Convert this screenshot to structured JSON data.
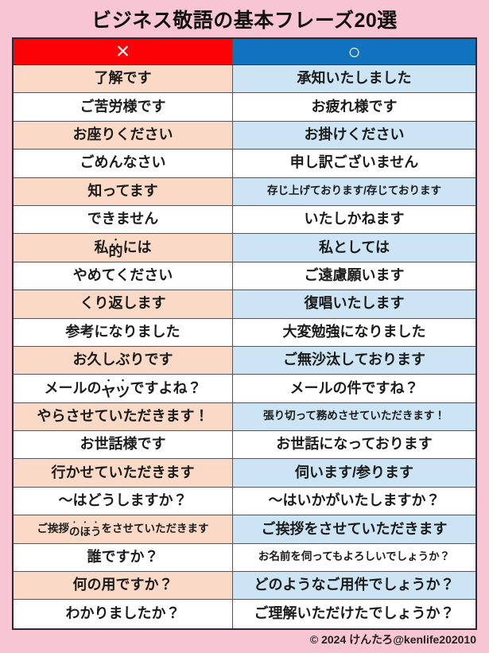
{
  "page": {
    "title": "ビジネス敬語の基本フレーズ20選",
    "credit": "© 2024 けんたろ@kenlife202010"
  },
  "colors": {
    "page_background": "#F8C5D5",
    "ng_header": "#FB0206",
    "ok_header": "#1173BF",
    "ng_row_shaded": "#FAD9C7",
    "ok_row_shaded": "#CDE4F4",
    "row_plain": "#FFFFFF",
    "text": "#1B1B1B"
  },
  "table": {
    "headers": [
      {
        "id": "ng",
        "label": "×",
        "meaning": "incorrect-phrase-column"
      },
      {
        "id": "ok",
        "label": "○",
        "meaning": "correct-phrase-column"
      }
    ],
    "rows": [
      {
        "ng": {
          "text": "了解です"
        },
        "ok": {
          "text": "承知いたしました"
        }
      },
      {
        "ng": {
          "text": "ご苦労様です"
        },
        "ok": {
          "text": "お疲れ様です"
        }
      },
      {
        "ng": {
          "text": "お座りください"
        },
        "ok": {
          "text": "お掛けください"
        }
      },
      {
        "ng": {
          "text": "ごめんなさい"
        },
        "ok": {
          "text": "申し訳ございません"
        }
      },
      {
        "ng": {
          "text": "知ってます"
        },
        "ok": {
          "text": "存じ上げております/存じております",
          "small": true
        }
      },
      {
        "ng": {
          "text": "できません"
        },
        "ok": {
          "text": "いたしかねます"
        }
      },
      {
        "ng": {
          "text": "私的には",
          "em": "的"
        },
        "ok": {
          "text": "私としては"
        }
      },
      {
        "ng": {
          "text": "やめてください"
        },
        "ok": {
          "text": "ご遠慮願います"
        }
      },
      {
        "ng": {
          "text": "くり返します"
        },
        "ok": {
          "text": "復唱いたします"
        }
      },
      {
        "ng": {
          "text": "参考になりました"
        },
        "ok": {
          "text": "大変勉強になりました"
        }
      },
      {
        "ng": {
          "text": "お久しぶりです"
        },
        "ok": {
          "text": "ご無沙汰しております"
        }
      },
      {
        "ng": {
          "text": "メールのヤツですよね？",
          "em": "ヤツ"
        },
        "ok": {
          "text": "メールの件ですね？"
        }
      },
      {
        "ng": {
          "text": "やらさせていただきます！"
        },
        "ok": {
          "text": "張り切って務めさせていただきます！",
          "small": true
        }
      },
      {
        "ng": {
          "text": "お世話様です"
        },
        "ok": {
          "text": "お世話になっております"
        }
      },
      {
        "ng": {
          "text": "行かせていただきます"
        },
        "ok": {
          "text": "伺います/参ります"
        }
      },
      {
        "ng": {
          "text": "～はどうしますか？"
        },
        "ok": {
          "text": "～はいかがいたしますか？"
        }
      },
      {
        "ng": {
          "text": "ご挨拶のほうをさせていただきます",
          "em": "のほう",
          "small": true
        },
        "ok": {
          "text": "ご挨拶をさせていただきます"
        }
      },
      {
        "ng": {
          "text": "誰ですか？"
        },
        "ok": {
          "text": "お名前を伺ってもよろしいでしょうか？",
          "small": true
        }
      },
      {
        "ng": {
          "text": "何の用ですか？"
        },
        "ok": {
          "text": "どのようなご用件でしょうか？"
        }
      },
      {
        "ng": {
          "text": "わかりましたか？"
        },
        "ok": {
          "text": "ご理解いただけたでしょうか？"
        }
      }
    ]
  }
}
